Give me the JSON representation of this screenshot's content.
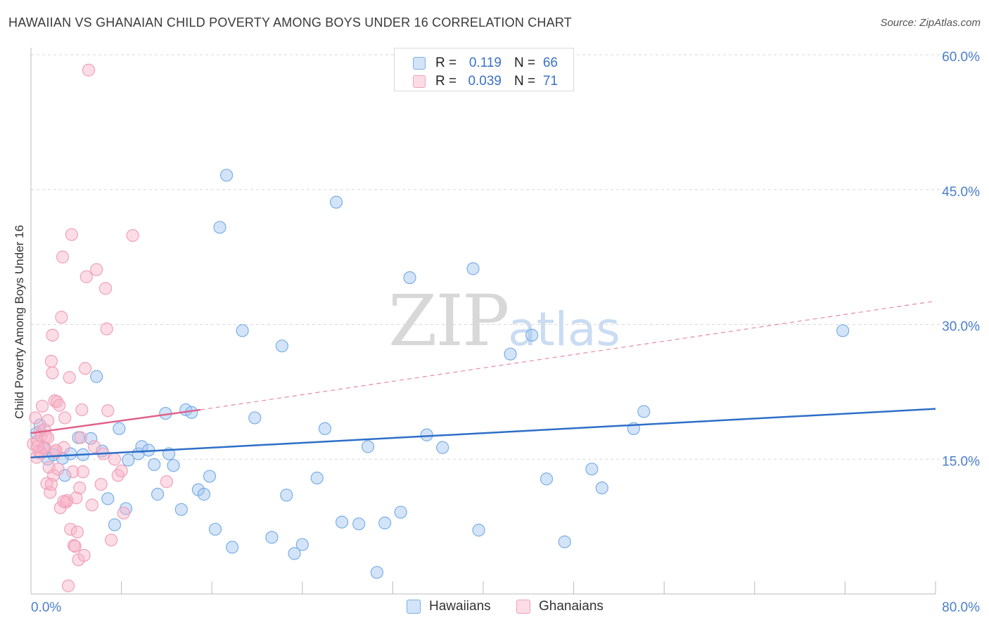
{
  "chart_data": {
    "type": "scatter",
    "title": "HAWAIIAN VS GHANAIAN CHILD POVERTY AMONG BOYS UNDER 16 CORRELATION CHART",
    "source": "Source: ZipAtlas.com",
    "xlabel": "",
    "ylabel": "Child Poverty Among Boys Under 16",
    "xlim": [
      0,
      80
    ],
    "ylim": [
      0,
      60
    ],
    "x_tick_labels": [
      "0.0%",
      "80.0%"
    ],
    "y_tick_labels": [
      "15.0%",
      "30.0%",
      "45.0%",
      "60.0%"
    ],
    "y_ticks": [
      15,
      30,
      45,
      60
    ],
    "grid": "horizontal dashed",
    "watermark": {
      "zip": "ZIP",
      "atlas": "atlas"
    },
    "legend": {
      "placement": "top-center",
      "rows": [
        {
          "r_label": "R =",
          "r_value": "0.119",
          "n_label": "N =",
          "n_value": "66"
        },
        {
          "r_label": "R =",
          "r_value": "0.039",
          "n_label": "N =",
          "n_value": "71"
        }
      ]
    },
    "series": [
      {
        "name": "Hawaiians",
        "color": "#7aaee8",
        "fill": "rgba(160,196,240,0.45)",
        "line_color": "#2e6fc7",
        "trend": {
          "x0": 0,
          "y0": 15.2,
          "x1": 80,
          "y1": 20.6,
          "dashed_extension": false
        },
        "points": [
          [
            0.5,
            17.9
          ],
          [
            0.8,
            18.8
          ],
          [
            1.2,
            16.2
          ],
          [
            1.5,
            15.0
          ],
          [
            2.0,
            15.5
          ],
          [
            2.8,
            15.1
          ],
          [
            3.0,
            13.2
          ],
          [
            3.5,
            15.6
          ],
          [
            4.2,
            17.4
          ],
          [
            4.6,
            15.5
          ],
          [
            5.3,
            17.3
          ],
          [
            5.8,
            24.2
          ],
          [
            6.3,
            15.9
          ],
          [
            6.8,
            10.6
          ],
          [
            7.4,
            7.7
          ],
          [
            7.8,
            18.4
          ],
          [
            8.4,
            9.5
          ],
          [
            8.6,
            14.9
          ],
          [
            9.5,
            15.6
          ],
          [
            9.8,
            16.4
          ],
          [
            10.4,
            16.0
          ],
          [
            10.9,
            14.4
          ],
          [
            11.2,
            11.1
          ],
          [
            11.9,
            20.1
          ],
          [
            12.2,
            15.6
          ],
          [
            12.6,
            14.3
          ],
          [
            13.3,
            9.4
          ],
          [
            13.7,
            20.5
          ],
          [
            14.2,
            20.2
          ],
          [
            14.8,
            11.6
          ],
          [
            15.3,
            11.1
          ],
          [
            15.8,
            13.1
          ],
          [
            16.3,
            7.2
          ],
          [
            16.7,
            40.8
          ],
          [
            17.3,
            46.6
          ],
          [
            17.8,
            5.2
          ],
          [
            18.7,
            29.3
          ],
          [
            19.8,
            19.6
          ],
          [
            21.3,
            6.3
          ],
          [
            22.2,
            27.6
          ],
          [
            22.6,
            11.0
          ],
          [
            23.3,
            4.5
          ],
          [
            24.0,
            5.5
          ],
          [
            25.3,
            12.9
          ],
          [
            26.0,
            18.4
          ],
          [
            27.0,
            43.6
          ],
          [
            27.5,
            8.0
          ],
          [
            29.0,
            7.8
          ],
          [
            29.8,
            16.4
          ],
          [
            30.6,
            2.4
          ],
          [
            31.3,
            7.9
          ],
          [
            32.7,
            9.1
          ],
          [
            33.5,
            35.2
          ],
          [
            35.0,
            17.7
          ],
          [
            36.4,
            16.3
          ],
          [
            39.1,
            36.2
          ],
          [
            39.6,
            7.1
          ],
          [
            42.4,
            26.7
          ],
          [
            44.3,
            28.8
          ],
          [
            45.6,
            12.8
          ],
          [
            47.2,
            5.8
          ],
          [
            49.6,
            13.9
          ],
          [
            50.5,
            11.8
          ],
          [
            53.3,
            18.4
          ],
          [
            54.2,
            20.3
          ],
          [
            71.8,
            29.3
          ]
        ]
      },
      {
        "name": "Ghanaians",
        "color": "#f0a0ba",
        "fill": "rgba(248,180,200,0.45)",
        "line_color": "#e0608a",
        "trend": {
          "x0": 0,
          "y0": 17.9,
          "x1": 15,
          "y1": 20.5,
          "dashed_extension": true,
          "x2": 80,
          "y2": 32.6
        },
        "points": [
          [
            0.2,
            16.7
          ],
          [
            0.4,
            19.6
          ],
          [
            0.5,
            15.2
          ],
          [
            0.6,
            17.0
          ],
          [
            0.7,
            15.9
          ],
          [
            0.8,
            18.1
          ],
          [
            0.9,
            17.6
          ],
          [
            1.0,
            20.9
          ],
          [
            1.1,
            16.2
          ],
          [
            1.2,
            18.3
          ],
          [
            1.3,
            17.5
          ],
          [
            1.4,
            12.3
          ],
          [
            1.5,
            19.3
          ],
          [
            1.6,
            14.1
          ],
          [
            1.7,
            11.3
          ],
          [
            1.8,
            25.9
          ],
          [
            1.9,
            24.6
          ],
          [
            1.9,
            28.8
          ],
          [
            2.0,
            13.2
          ],
          [
            2.1,
            21.5
          ],
          [
            2.2,
            15.8
          ],
          [
            2.3,
            21.4
          ],
          [
            2.4,
            13.9
          ],
          [
            2.5,
            21.0
          ],
          [
            2.6,
            9.6
          ],
          [
            2.7,
            30.8
          ],
          [
            2.8,
            37.5
          ],
          [
            2.9,
            16.3
          ],
          [
            3.0,
            19.6
          ],
          [
            3.1,
            10.2
          ],
          [
            3.2,
            10.4
          ],
          [
            3.3,
            0.9
          ],
          [
            3.4,
            24.1
          ],
          [
            3.5,
            7.2
          ],
          [
            3.6,
            40.0
          ],
          [
            3.7,
            13.6
          ],
          [
            3.8,
            5.4
          ],
          [
            4.0,
            10.7
          ],
          [
            4.1,
            6.9
          ],
          [
            4.2,
            3.8
          ],
          [
            4.3,
            11.8
          ],
          [
            4.4,
            17.4
          ],
          [
            4.5,
            20.5
          ],
          [
            4.6,
            13.6
          ],
          [
            4.7,
            4.3
          ],
          [
            4.8,
            25.1
          ],
          [
            4.9,
            35.3
          ],
          [
            5.1,
            58.3
          ],
          [
            5.4,
            9.9
          ],
          [
            5.8,
            36.1
          ],
          [
            6.2,
            12.2
          ],
          [
            6.4,
            15.6
          ],
          [
            6.6,
            34.0
          ],
          [
            6.7,
            29.5
          ],
          [
            6.8,
            20.4
          ],
          [
            7.1,
            6.0
          ],
          [
            7.4,
            15.0
          ],
          [
            7.7,
            13.2
          ],
          [
            8.0,
            13.7
          ],
          [
            8.2,
            9.0
          ],
          [
            9.0,
            39.9
          ],
          [
            12.0,
            12.5
          ],
          [
            1.2,
            16.3
          ],
          [
            0.9,
            15.7
          ],
          [
            1.5,
            17.4
          ],
          [
            2.2,
            16.0
          ],
          [
            0.6,
            16.4
          ],
          [
            1.8,
            12.2
          ],
          [
            2.9,
            10.3
          ],
          [
            3.9,
            5.3
          ],
          [
            5.6,
            16.4
          ]
        ]
      }
    ]
  }
}
